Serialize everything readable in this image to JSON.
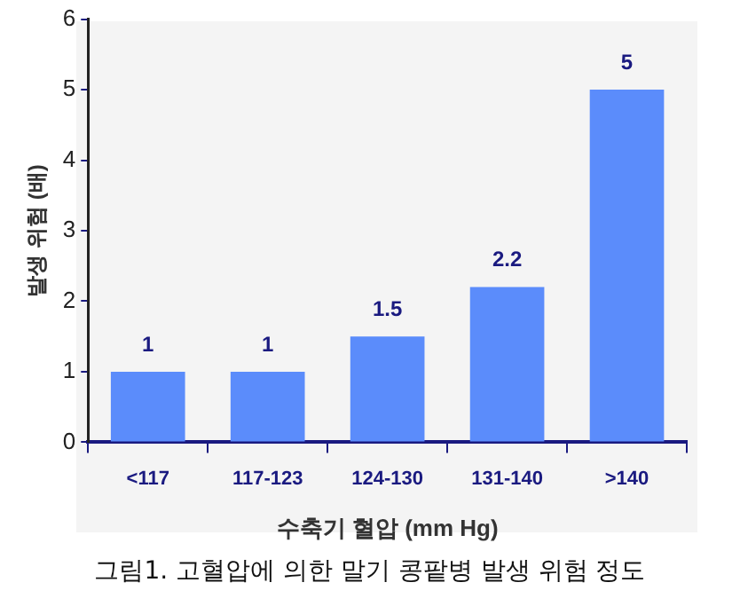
{
  "chart_data": {
    "type": "bar",
    "xlabel": "수축기 혈압 (mm Hg)",
    "ylabel": "발생 위험 (배)",
    "categories": [
      "<117",
      "117-123",
      "124-130",
      "131-140",
      ">140"
    ],
    "values": [
      1,
      1,
      1.5,
      2.2,
      5
    ],
    "color": "#5b8cfb",
    "ylim": [
      0,
      6
    ],
    "yticks": [
      0,
      1,
      2,
      3,
      4,
      5,
      6
    ],
    "grid": false,
    "legend": false,
    "data_labels": true,
    "annotations": [
      "그림1. 고혈압에 의한 말기 콩팥병 발생 위험 정도"
    ]
  }
}
